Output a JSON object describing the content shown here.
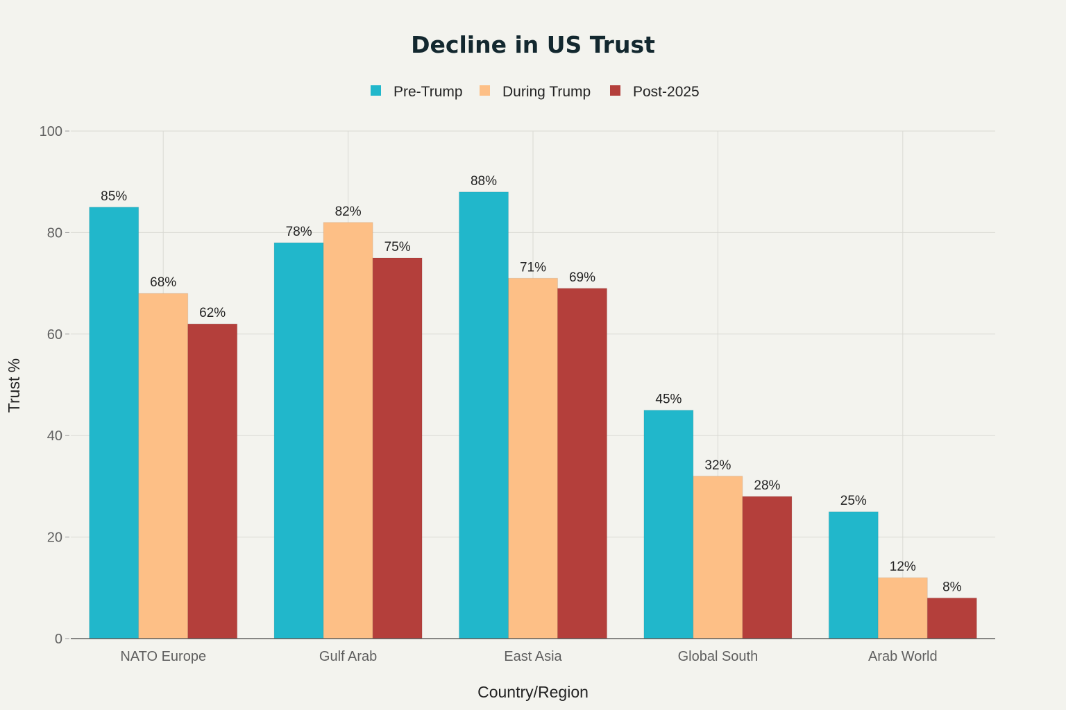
{
  "chart_data": {
    "type": "bar",
    "title": "Decline in US Trust",
    "xlabel": "Country/Region",
    "ylabel": "Trust %",
    "ylim": [
      0,
      100
    ],
    "yticks": [
      0,
      20,
      40,
      60,
      80,
      100
    ],
    "grid": true,
    "legend_position": "top-center",
    "categories": [
      "NATO Europe",
      "Gulf Arab",
      "East Asia",
      "Global South",
      "Arab World"
    ],
    "series": [
      {
        "name": "Pre-Trump",
        "color": "#21b7cb",
        "values": [
          85,
          78,
          88,
          45,
          25
        ],
        "labels": [
          "85%",
          "78%",
          "88%",
          "45%",
          "25%"
        ]
      },
      {
        "name": "During Trump",
        "color": "#fdbf86",
        "values": [
          68,
          82,
          71,
          32,
          12
        ],
        "labels": [
          "68%",
          "82%",
          "71%",
          "32%",
          "12%"
        ]
      },
      {
        "name": "Post-2025",
        "color": "#b43f3b",
        "values": [
          62,
          75,
          69,
          28,
          8
        ],
        "labels": [
          "62%",
          "75%",
          "69%",
          "28%",
          "8%"
        ]
      }
    ]
  }
}
